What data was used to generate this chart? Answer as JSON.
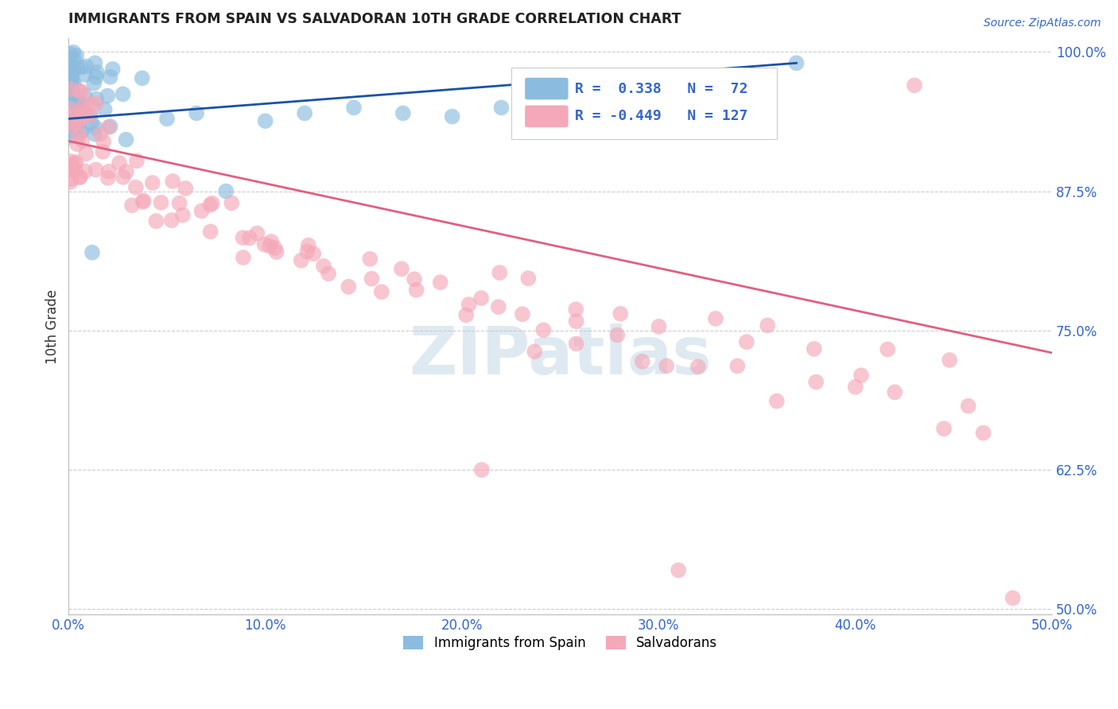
{
  "title": "IMMIGRANTS FROM SPAIN VS SALVADORAN 10TH GRADE CORRELATION CHART",
  "source": "Source: ZipAtlas.com",
  "ylabel": "10th Grade",
  "xlim": [
    0.0,
    0.5
  ],
  "ylim": [
    0.495,
    1.012
  ],
  "xtick_vals": [
    0.0,
    0.1,
    0.2,
    0.3,
    0.4,
    0.5
  ],
  "ytick_vals": [
    0.5,
    0.625,
    0.75,
    0.875,
    1.0
  ],
  "ytick_labels": [
    "50.0%",
    "62.5%",
    "75.0%",
    "87.5%",
    "100.0%"
  ],
  "blue_color": "#8bbcdf",
  "pink_color": "#f4a8b8",
  "blue_line_color": "#1a52a8",
  "pink_line_color": "#e06080",
  "legend_blue_R": "0.338",
  "legend_blue_N": "72",
  "legend_pink_R": "-0.449",
  "legend_pink_N": "127",
  "legend_label_blue": "Immigrants from Spain",
  "legend_label_pink": "Salvadorans",
  "watermark": "ZIPatlas",
  "watermark_color": "#b8cfe0",
  "grid_color": "#cccccc",
  "blue_line_x0": 0.0,
  "blue_line_x1": 0.37,
  "blue_line_y0": 0.94,
  "blue_line_y1": 0.99,
  "pink_line_x0": 0.0,
  "pink_line_x1": 0.5,
  "pink_line_y0": 0.92,
  "pink_line_y1": 0.73
}
